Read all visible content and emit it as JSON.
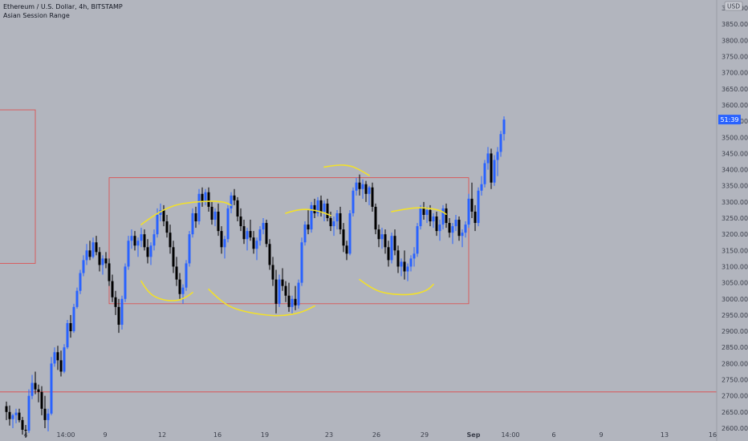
{
  "legend": {
    "symbol": "Ethereum / U.S. Dollar, 4h, BITSTAMP",
    "indicator": "Asian Session Range"
  },
  "colors": {
    "background": "#b2b5be",
    "axis_text": "#3a3e4a",
    "up_candle": "#2962ff",
    "down_candle": "#000000",
    "range_box": "#e04848",
    "annotation": "#f2e02a",
    "price_badge": "#2962ff"
  },
  "chart_data": {
    "type": "candlestick",
    "currency": "USD",
    "current_price_label": "51:39",
    "ylim": [
      2590,
      3925
    ],
    "y_ticks": [
      2600,
      2650,
      2700,
      2750,
      2800,
      2850,
      2900,
      2950,
      3000,
      3050,
      3100,
      3150,
      3200,
      3250,
      3300,
      3350,
      3400,
      3450,
      3500,
      3550,
      3600,
      3650,
      3700,
      3750,
      3800,
      3850,
      3900
    ],
    "x_ticks": [
      "4",
      "14:00",
      "9",
      "12",
      "16",
      "19",
      "23",
      "26",
      "29",
      "Sep",
      "14:00",
      "6",
      "9",
      "13",
      "16"
    ],
    "horizontal_line": 2712,
    "range_boxes": [
      {
        "start_bar": -15,
        "end_bar": 9,
        "high": 3585,
        "low": 3110
      },
      {
        "start_bar": 32,
        "end_bar": 144,
        "high": 3375,
        "low": 2985
      }
    ],
    "candles": [
      [
        2668,
        2682,
        2625,
        2650
      ],
      [
        2650,
        2670,
        2608,
        2628
      ],
      [
        2628,
        2645,
        2600,
        2640
      ],
      [
        2640,
        2660,
        2615,
        2648
      ],
      [
        2648,
        2660,
        2618,
        2625
      ],
      [
        2625,
        2635,
        2580,
        2595
      ],
      [
        2595,
        2610,
        2570,
        2592
      ],
      [
        2592,
        2720,
        2585,
        2700
      ],
      [
        2700,
        2765,
        2690,
        2740
      ],
      [
        2740,
        2775,
        2705,
        2720
      ],
      [
        2720,
        2735,
        2680,
        2712
      ],
      [
        2712,
        2730,
        2640,
        2660
      ],
      [
        2660,
        2700,
        2600,
        2625
      ],
      [
        2625,
        2660,
        2590,
        2645
      ],
      [
        2645,
        2820,
        2640,
        2800
      ],
      [
        2800,
        2850,
        2790,
        2835
      ],
      [
        2835,
        2855,
        2780,
        2810
      ],
      [
        2810,
        2840,
        2760,
        2775
      ],
      [
        2775,
        2860,
        2770,
        2850
      ],
      [
        2850,
        2935,
        2845,
        2925
      ],
      [
        2925,
        2950,
        2880,
        2900
      ],
      [
        2900,
        2985,
        2895,
        2975
      ],
      [
        2975,
        3035,
        2970,
        3025
      ],
      [
        3025,
        3090,
        3015,
        3080
      ],
      [
        3080,
        3135,
        3070,
        3120
      ],
      [
        3120,
        3170,
        3105,
        3150
      ],
      [
        3150,
        3180,
        3120,
        3130
      ],
      [
        3130,
        3190,
        3125,
        3175
      ],
      [
        3175,
        3195,
        3135,
        3145
      ],
      [
        3145,
        3160,
        3085,
        3105
      ],
      [
        3105,
        3135,
        3075,
        3125
      ],
      [
        3125,
        3145,
        3095,
        3110
      ],
      [
        3110,
        3125,
        3040,
        3055
      ],
      [
        3055,
        3075,
        2990,
        3005
      ],
      [
        3005,
        3025,
        2950,
        2975
      ],
      [
        2975,
        3000,
        2895,
        2920
      ],
      [
        2920,
        3010,
        2905,
        3000
      ],
      [
        3000,
        3110,
        2990,
        3100
      ],
      [
        3100,
        3195,
        3090,
        3180
      ],
      [
        3180,
        3215,
        3155,
        3195
      ],
      [
        3195,
        3210,
        3150,
        3165
      ],
      [
        3165,
        3190,
        3130,
        3180
      ],
      [
        3180,
        3220,
        3160,
        3200
      ],
      [
        3200,
        3215,
        3150,
        3160
      ],
      [
        3160,
        3185,
        3110,
        3130
      ],
      [
        3130,
        3175,
        3105,
        3165
      ],
      [
        3165,
        3215,
        3150,
        3200
      ],
      [
        3200,
        3280,
        3190,
        3260
      ],
      [
        3260,
        3295,
        3240,
        3275
      ],
      [
        3275,
        3290,
        3225,
        3240
      ],
      [
        3240,
        3260,
        3190,
        3205
      ],
      [
        3205,
        3230,
        3140,
        3160
      ],
      [
        3160,
        3180,
        3080,
        3100
      ],
      [
        3100,
        3130,
        3040,
        3060
      ],
      [
        3060,
        3080,
        3000,
        3015
      ],
      [
        3015,
        3045,
        2985,
        3035
      ],
      [
        3035,
        3120,
        3025,
        3110
      ],
      [
        3110,
        3210,
        3100,
        3200
      ],
      [
        3200,
        3280,
        3190,
        3265
      ],
      [
        3265,
        3285,
        3220,
        3240
      ],
      [
        3240,
        3340,
        3230,
        3325
      ],
      [
        3325,
        3345,
        3285,
        3300
      ],
      [
        3300,
        3340,
        3290,
        3330
      ],
      [
        3330,
        3345,
        3270,
        3285
      ],
      [
        3285,
        3300,
        3230,
        3245
      ],
      [
        3245,
        3280,
        3225,
        3270
      ],
      [
        3270,
        3295,
        3195,
        3210
      ],
      [
        3210,
        3225,
        3140,
        3160
      ],
      [
        3160,
        3195,
        3125,
        3185
      ],
      [
        3185,
        3290,
        3175,
        3280
      ],
      [
        3280,
        3330,
        3265,
        3320
      ],
      [
        3320,
        3340,
        3290,
        3305
      ],
      [
        3305,
        3315,
        3240,
        3255
      ],
      [
        3255,
        3280,
        3210,
        3225
      ],
      [
        3225,
        3245,
        3170,
        3185
      ],
      [
        3185,
        3220,
        3150,
        3210
      ],
      [
        3210,
        3245,
        3180,
        3190
      ],
      [
        3190,
        3210,
        3140,
        3155
      ],
      [
        3155,
        3190,
        3120,
        3180
      ],
      [
        3180,
        3225,
        3165,
        3215
      ],
      [
        3215,
        3250,
        3200,
        3235
      ],
      [
        3235,
        3245,
        3160,
        3170
      ],
      [
        3170,
        3185,
        3090,
        3105
      ],
      [
        3105,
        3130,
        3040,
        3060
      ],
      [
        3060,
        3090,
        2955,
        2985
      ],
      [
        2985,
        3075,
        2975,
        3060
      ],
      [
        3060,
        3095,
        3025,
        3040
      ],
      [
        3040,
        3055,
        2990,
        3010
      ],
      [
        3010,
        3050,
        2960,
        2975
      ],
      [
        2975,
        3010,
        2955,
        3000
      ],
      [
        3000,
        3040,
        2965,
        2980
      ],
      [
        2980,
        3060,
        2970,
        3050
      ],
      [
        3050,
        3190,
        3040,
        3175
      ],
      [
        3175,
        3240,
        3165,
        3230
      ],
      [
        3230,
        3275,
        3200,
        3215
      ],
      [
        3215,
        3300,
        3205,
        3290
      ],
      [
        3290,
        3310,
        3250,
        3265
      ],
      [
        3265,
        3315,
        3255,
        3305
      ],
      [
        3305,
        3320,
        3255,
        3270
      ],
      [
        3270,
        3305,
        3240,
        3295
      ],
      [
        3295,
        3310,
        3240,
        3250
      ],
      [
        3250,
        3270,
        3210,
        3225
      ],
      [
        3225,
        3255,
        3195,
        3240
      ],
      [
        3240,
        3275,
        3215,
        3265
      ],
      [
        3265,
        3285,
        3200,
        3215
      ],
      [
        3215,
        3235,
        3145,
        3165
      ],
      [
        3165,
        3180,
        3120,
        3140
      ],
      [
        3140,
        3275,
        3135,
        3265
      ],
      [
        3265,
        3345,
        3255,
        3335
      ],
      [
        3335,
        3375,
        3320,
        3360
      ],
      [
        3360,
        3385,
        3320,
        3340
      ],
      [
        3340,
        3370,
        3310,
        3355
      ],
      [
        3355,
        3365,
        3300,
        3325
      ],
      [
        3325,
        3350,
        3290,
        3345
      ],
      [
        3345,
        3360,
        3270,
        3285
      ],
      [
        3285,
        3295,
        3200,
        3215
      ],
      [
        3215,
        3230,
        3160,
        3185
      ],
      [
        3185,
        3220,
        3155,
        3200
      ],
      [
        3200,
        3215,
        3140,
        3160
      ],
      [
        3160,
        3180,
        3100,
        3120
      ],
      [
        3120,
        3205,
        3110,
        3195
      ],
      [
        3195,
        3215,
        3135,
        3150
      ],
      [
        3150,
        3165,
        3080,
        3100
      ],
      [
        3100,
        3125,
        3070,
        3115
      ],
      [
        3115,
        3150,
        3060,
        3085
      ],
      [
        3085,
        3110,
        3055,
        3100
      ],
      [
        3100,
        3135,
        3085,
        3125
      ],
      [
        3125,
        3160,
        3100,
        3140
      ],
      [
        3140,
        3235,
        3130,
        3225
      ],
      [
        3225,
        3290,
        3215,
        3280
      ],
      [
        3280,
        3300,
        3245,
        3260
      ],
      [
        3260,
        3285,
        3235,
        3275
      ],
      [
        3275,
        3290,
        3225,
        3240
      ],
      [
        3240,
        3265,
        3220,
        3255
      ],
      [
        3255,
        3270,
        3195,
        3210
      ],
      [
        3210,
        3245,
        3180,
        3230
      ],
      [
        3230,
        3290,
        3215,
        3280
      ],
      [
        3280,
        3295,
        3220,
        3235
      ],
      [
        3235,
        3250,
        3190,
        3205
      ],
      [
        3205,
        3235,
        3170,
        3225
      ],
      [
        3225,
        3260,
        3210,
        3245
      ],
      [
        3245,
        3255,
        3180,
        3195
      ],
      [
        3195,
        3215,
        3160,
        3205
      ],
      [
        3205,
        3240,
        3190,
        3230
      ],
      [
        3230,
        3325,
        3220,
        3310
      ],
      [
        3310,
        3360,
        3250,
        3270
      ],
      [
        3270,
        3290,
        3210,
        3235
      ],
      [
        3235,
        3345,
        3225,
        3335
      ],
      [
        3335,
        3380,
        3320,
        3355
      ],
      [
        3355,
        3430,
        3345,
        3420
      ],
      [
        3420,
        3470,
        3400,
        3450
      ],
      [
        3450,
        3465,
        3340,
        3360
      ],
      [
        3360,
        3445,
        3350,
        3430
      ],
      [
        3430,
        3470,
        3380,
        3455
      ],
      [
        3455,
        3520,
        3440,
        3510
      ],
      [
        3510,
        3565,
        3490,
        3555
      ]
    ]
  }
}
